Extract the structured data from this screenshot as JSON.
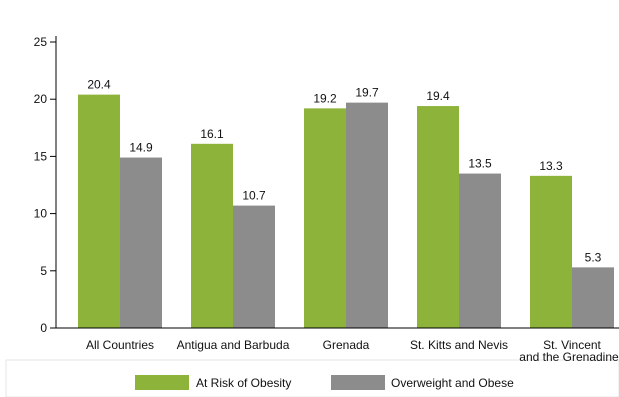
{
  "chart_data": {
    "type": "bar",
    "categories": [
      [
        "All Countries"
      ],
      [
        "Antigua and Barbuda"
      ],
      [
        "Grenada"
      ],
      [
        "St. Kitts and Nevis"
      ],
      [
        "St. Vincent",
        "and the Grenadines"
      ]
    ],
    "series": [
      {
        "name": "At Risk of Obesity",
        "color": "#8db33a",
        "values": [
          20.4,
          16.1,
          19.2,
          19.4,
          13.3
        ]
      },
      {
        "name": "Overweight and Obese",
        "color": "#8c8c8c",
        "values": [
          14.9,
          10.7,
          19.7,
          13.5,
          5.3
        ]
      }
    ],
    "y_ticks": [
      0,
      5,
      10,
      15,
      20,
      25
    ],
    "ylim": [
      0,
      25
    ],
    "grid": false,
    "legend_position": "bottom",
    "data_labels": true
  }
}
